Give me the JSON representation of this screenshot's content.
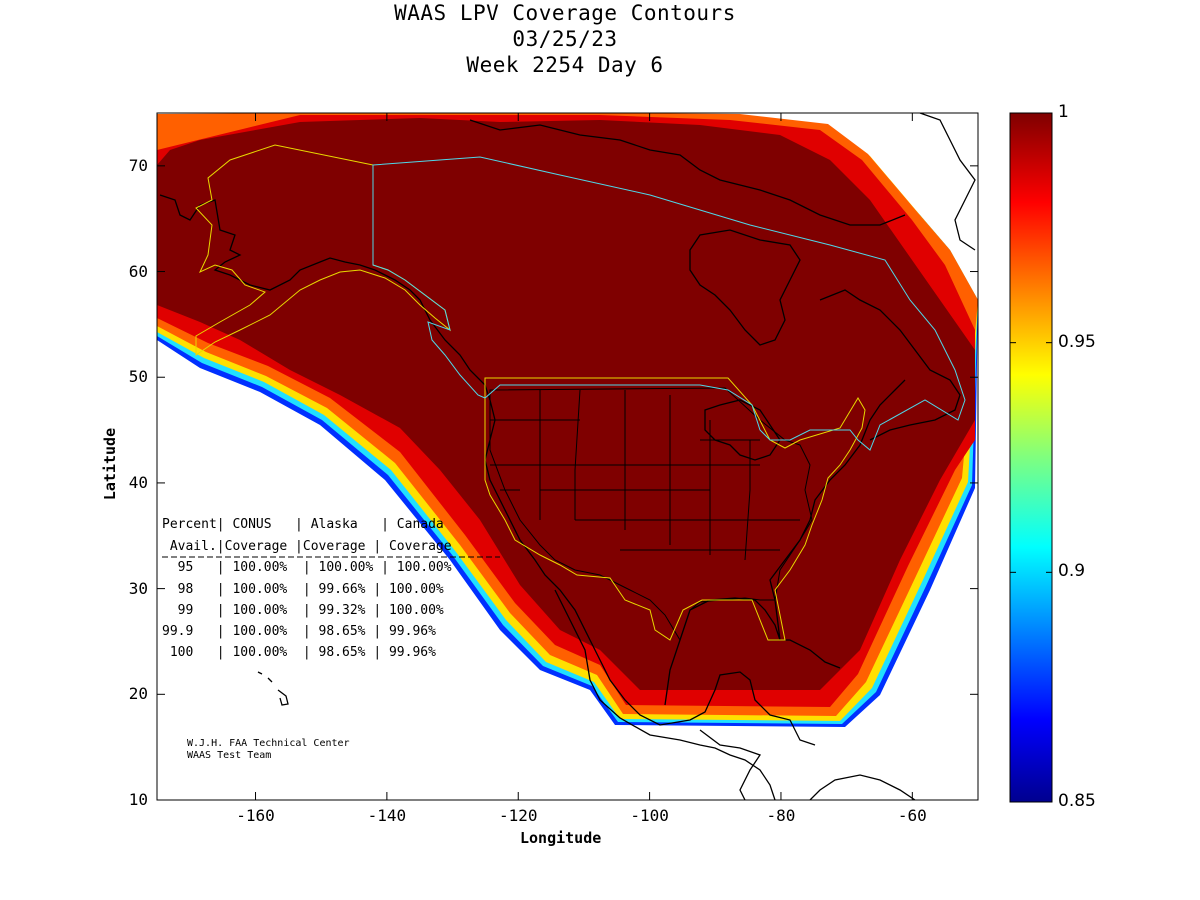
{
  "title": {
    "line1": "WAAS LPV Coverage Contours",
    "line2": "03/25/23",
    "line3": "Week 2254 Day 6"
  },
  "axes": {
    "x_title": "Longitude",
    "y_title": "Latitude",
    "x_ticks": [
      "-160",
      "-140",
      "-120",
      "-100",
      "-80",
      "-60"
    ],
    "x_tick_values": [
      -160,
      -140,
      -120,
      -100,
      -80,
      -60
    ],
    "y_ticks": [
      "70",
      "60",
      "50",
      "40",
      "30",
      "20",
      "10"
    ],
    "y_tick_values": [
      70,
      60,
      50,
      40,
      30,
      20,
      10
    ],
    "x_range": [
      -175,
      -50
    ],
    "y_range": [
      10,
      75
    ]
  },
  "colorbar": {
    "labels": [
      "1",
      "0.95",
      "0.9",
      "0.85"
    ],
    "values": [
      1,
      0.95,
      0.9,
      0.85
    ],
    "range": [
      0.85,
      1
    ],
    "colormap": "jet"
  },
  "stats_table": {
    "header1": "Percent| CONUS   | Alaska   | Canada",
    "header2": " Avail.|Coverage |Coverage | Coverage",
    "rows": [
      "  95   | 100.00%  | 100.00% | 100.00%",
      "  98   | 100.00%  | 99.66% | 100.00%",
      "  99   | 100.00%  | 99.32% | 100.00%",
      "99.9   | 100.00%  | 98.65% | 99.96%",
      " 100   | 100.00%  | 98.65% | 99.96%"
    ]
  },
  "credits": {
    "line1": "W.J.H. FAA Technical Center",
    "line2": "WAAS Test Team"
  },
  "colors": {
    "coverage_full": "#7f0000",
    "conus_outline": "#e8d800",
    "canada_outline": "#4fd7e8",
    "coastline": "#000000"
  }
}
